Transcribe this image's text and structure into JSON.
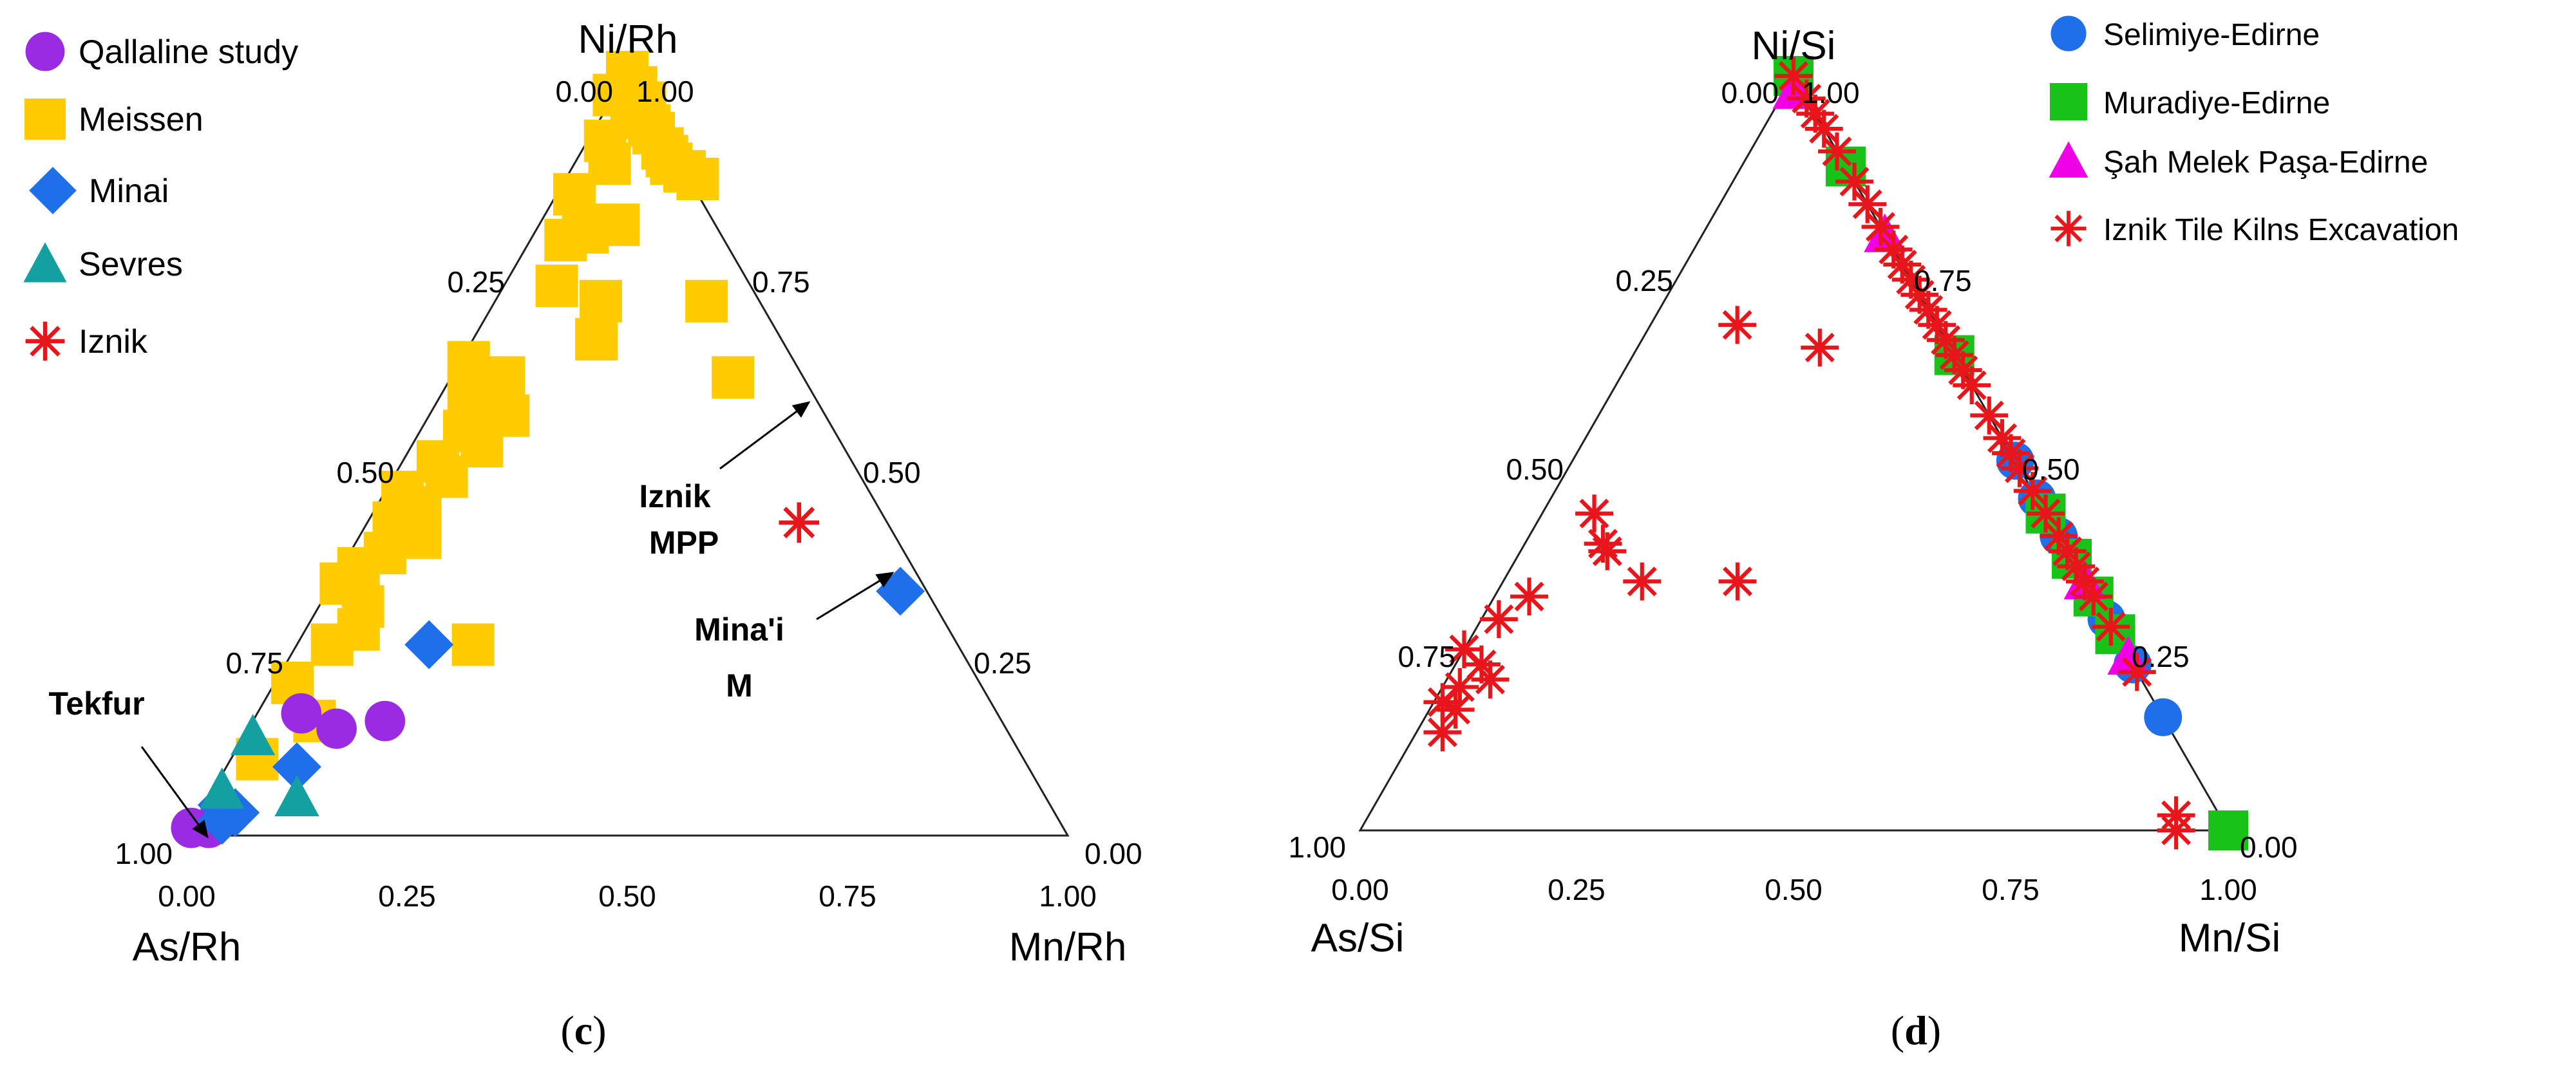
{
  "chart_data": [
    {
      "type": "scatter",
      "subtype": "ternary",
      "panel_label": {
        "open": "(",
        "letter": "c",
        "close": ")"
      },
      "apex_labels": {
        "top": "Ni/Rh",
        "left": "As/Rh",
        "right": "Mn/Rh"
      },
      "bottom_ticks": [
        "0.00",
        "0.25",
        "0.50",
        "0.75",
        "1.00"
      ],
      "left_ticks": [
        "1.00",
        "0.75",
        "0.50",
        "0.25",
        "0.00"
      ],
      "right_ticks": [
        "1.00",
        "0.75",
        "0.50",
        "0.25",
        "0.00"
      ],
      "legend": [
        {
          "label": "Qallaline study",
          "marker": "circle",
          "color": "#9A2BE3"
        },
        {
          "label": "Meissen",
          "marker": "square",
          "color": "#FFCC00"
        },
        {
          "label": "Minai",
          "marker": "diamond",
          "color": "#1F6FEB"
        },
        {
          "label": "Sevres",
          "marker": "triangle",
          "color": "#14A0A0"
        },
        {
          "label": "Iznik",
          "marker": "asterisk",
          "color": "#E8161B"
        }
      ],
      "annotations": [
        {
          "lines": [
            "Tekfur"
          ],
          "target": {
            "a": 0.03,
            "b": 0.01
          }
        },
        {
          "lines": [
            "Iznik",
            "MPP"
          ],
          "target": {
            "a": 0.41,
            "b": 0.52
          }
        },
        {
          "lines": [
            "Mina'i",
            "M"
          ],
          "target": {
            "a": 0.32,
            "b": 0.67
          }
        }
      ],
      "series": [
        {
          "name": "Meissen",
          "points": [
            [
              1.0,
              0.0
            ],
            [
              0.98,
              0.02
            ],
            [
              0.97,
              0.0
            ],
            [
              0.96,
              0.04
            ],
            [
              0.95,
              0.03
            ],
            [
              0.94,
              0.05
            ],
            [
              0.93,
              0.06
            ],
            [
              0.92,
              0.07
            ],
            [
              0.9,
              0.09
            ],
            [
              0.89,
              0.1
            ],
            [
              0.88,
              0.11
            ],
            [
              0.87,
              0.13
            ],
            [
              0.86,
              0.15
            ],
            [
              0.91,
              0.02
            ],
            [
              0.88,
              0.04
            ],
            [
              0.84,
              0.02
            ],
            [
              0.8,
              0.05
            ],
            [
              0.78,
              0.04
            ],
            [
              0.79,
              0.06
            ],
            [
              0.8,
              0.09
            ],
            [
              0.72,
              0.06
            ],
            [
              0.7,
              0.12
            ],
            [
              0.65,
              0.14
            ],
            [
              0.7,
              0.24
            ],
            [
              0.6,
              0.32
            ],
            [
              0.62,
              0.01
            ],
            [
              0.6,
              0.06
            ],
            [
              0.58,
              0.03
            ],
            [
              0.56,
              0.07
            ],
            [
              0.55,
              0.09
            ],
            [
              0.53,
              0.05
            ],
            [
              0.51,
              0.08
            ],
            [
              0.49,
              0.04
            ],
            [
              0.47,
              0.06
            ],
            [
              0.45,
              0.02
            ],
            [
              0.43,
              0.05
            ],
            [
              0.41,
              0.03
            ],
            [
              0.39,
              0.07
            ],
            [
              0.37,
              0.04
            ],
            [
              0.35,
              0.02
            ],
            [
              0.33,
              0.01
            ],
            [
              0.3,
              0.05
            ],
            [
              0.27,
              0.06
            ],
            [
              0.25,
              0.04
            ],
            [
              0.2,
              0.02
            ],
            [
              0.25,
              0.2
            ],
            [
              0.1,
              0.03
            ],
            [
              0.15,
              0.07
            ]
          ]
        },
        {
          "name": "Qallaline study",
          "points": [
            [
              0.15,
              0.15
            ],
            [
              0.14,
              0.1
            ],
            [
              0.16,
              0.05
            ],
            [
              0.01,
              0.0
            ],
            [
              0.01,
              0.02
            ]
          ]
        },
        {
          "name": "Minai",
          "points": [
            [
              0.25,
              0.15
            ],
            [
              0.32,
              0.65
            ],
            [
              0.09,
              0.08
            ],
            [
              0.04,
              0.02
            ],
            [
              0.03,
              0.04
            ],
            [
              0.02,
              0.03
            ]
          ]
        },
        {
          "name": "Sevres",
          "points": [
            [
              0.13,
              0.01
            ],
            [
              0.06,
              0.01
            ],
            [
              0.05,
              0.1
            ]
          ]
        },
        {
          "name": "Iznik",
          "points": [
            [
              0.41,
              0.49
            ]
          ]
        }
      ]
    },
    {
      "type": "scatter",
      "subtype": "ternary",
      "panel_label": {
        "open": "(",
        "letter": "d",
        "close": ")"
      },
      "apex_labels": {
        "top": "Ni/Si",
        "left": "As/Si",
        "right": "Mn/Si"
      },
      "bottom_ticks": [
        "0.00",
        "0.25",
        "0.50",
        "0.75",
        "1.00"
      ],
      "left_ticks": [
        "1.00",
        "0.75",
        "0.50",
        "0.25",
        "0.00"
      ],
      "right_ticks": [
        "1.00",
        "0.75",
        "0.50",
        "0.25",
        "0.00"
      ],
      "legend": [
        {
          "label": "Selimiye-Edirne",
          "marker": "circle",
          "color": "#1F6FEB"
        },
        {
          "label": "Muradiye-Edirne",
          "marker": "square",
          "color": "#19C219"
        },
        {
          "label": "Şah Melek Paşa-Edirne",
          "marker": "triangle",
          "color": "#F000E6"
        },
        {
          "label": "Iznik Tile Kilns Excavation",
          "marker": "asterisk",
          "color": "#E8161B"
        }
      ],
      "series": [
        {
          "name": "Selimiye-Edirne",
          "points": [
            [
              0.49,
              0.51
            ],
            [
              0.44,
              0.56
            ],
            [
              0.39,
              0.61
            ],
            [
              0.22,
              0.78
            ],
            [
              0.15,
              0.85
            ],
            [
              0.28,
              0.72
            ]
          ]
        },
        {
          "name": "Muradiye-Edirne",
          "points": [
            [
              1.0,
              0.0
            ],
            [
              0.88,
              0.12
            ],
            [
              0.63,
              0.37
            ],
            [
              0.42,
              0.58
            ],
            [
              0.36,
              0.64
            ],
            [
              0.31,
              0.69
            ],
            [
              0.0,
              1.0
            ],
            [
              0.26,
              0.74
            ]
          ]
        },
        {
          "name": "Şah Melek Paşa-Edirne",
          "points": [
            [
              0.98,
              0.01
            ],
            [
              0.79,
              0.21
            ],
            [
              0.23,
              0.77
            ],
            [
              0.33,
              0.67
            ]
          ]
        },
        {
          "name": "Iznik Tile Kilns Excavation",
          "points": [
            [
              1.0,
              0.0
            ],
            [
              0.97,
              0.03
            ],
            [
              0.95,
              0.05
            ],
            [
              0.93,
              0.07
            ],
            [
              0.9,
              0.1
            ],
            [
              0.86,
              0.14
            ],
            [
              0.83,
              0.17
            ],
            [
              0.8,
              0.2
            ],
            [
              0.77,
              0.23
            ],
            [
              0.75,
              0.25
            ],
            [
              0.73,
              0.27
            ],
            [
              0.71,
              0.29
            ],
            [
              0.69,
              0.31
            ],
            [
              0.67,
              0.33
            ],
            [
              0.65,
              0.35
            ],
            [
              0.63,
              0.37
            ],
            [
              0.61,
              0.39
            ],
            [
              0.59,
              0.41
            ],
            [
              0.55,
              0.45
            ],
            [
              0.52,
              0.48
            ],
            [
              0.5,
              0.5
            ],
            [
              0.48,
              0.52
            ],
            [
              0.45,
              0.55
            ],
            [
              0.42,
              0.58
            ],
            [
              0.39,
              0.61
            ],
            [
              0.37,
              0.63
            ],
            [
              0.35,
              0.65
            ],
            [
              0.33,
              0.67
            ],
            [
              0.31,
              0.69
            ],
            [
              0.27,
              0.73
            ],
            [
              0.21,
              0.79
            ],
            [
              0.02,
              0.93
            ],
            [
              0.0,
              0.94
            ],
            [
              0.67,
              0.1
            ],
            [
              0.64,
              0.21
            ],
            [
              0.42,
              0.06
            ],
            [
              0.37,
              0.1
            ],
            [
              0.38,
              0.09
            ],
            [
              0.33,
              0.16
            ],
            [
              0.33,
              0.27
            ],
            [
              0.24,
              0.0
            ],
            [
              0.22,
              0.03
            ],
            [
              0.31,
              0.04
            ],
            [
              0.28,
              0.02
            ],
            [
              0.2,
              0.05
            ],
            [
              0.19,
              0.02
            ],
            [
              0.16,
              0.03
            ],
            [
              0.13,
              0.03
            ],
            [
              0.17,
              0.01
            ]
          ]
        }
      ]
    }
  ]
}
